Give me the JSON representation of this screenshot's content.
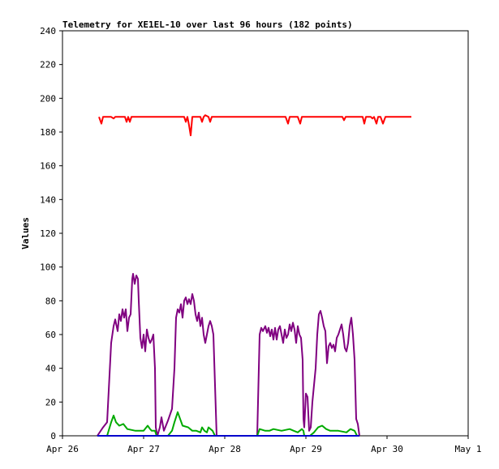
{
  "chart_data": {
    "type": "line",
    "title": "Telemetry for XE1EL-10 over last 96 hours (182 points)",
    "xlabel": "",
    "ylabel": "Values",
    "x_ticks": [
      "Apr 26",
      "Apr 27",
      "Apr 28",
      "Apr 29",
      "Apr 30",
      "May 1"
    ],
    "y_ticks": [
      "0",
      "20",
      "40",
      "60",
      "80",
      "100",
      "120",
      "140",
      "160",
      "180",
      "200",
      "220",
      "240"
    ],
    "x_range_days": [
      0,
      5
    ],
    "ylim": [
      0,
      240
    ],
    "grid": false,
    "legend": "none",
    "series": [
      {
        "color": "#ff0000",
        "points": [
          [
            0.45,
            189
          ],
          [
            0.48,
            185
          ],
          [
            0.5,
            189
          ],
          [
            0.6,
            189
          ],
          [
            0.63,
            188
          ],
          [
            0.65,
            189
          ],
          [
            0.77,
            189
          ],
          [
            0.79,
            186
          ],
          [
            0.81,
            189
          ],
          [
            0.83,
            186
          ],
          [
            0.85,
            189
          ],
          [
            1.0,
            189
          ],
          [
            1.2,
            189
          ],
          [
            1.5,
            189
          ],
          [
            1.52,
            186
          ],
          [
            1.54,
            189
          ],
          [
            1.56,
            184
          ],
          [
            1.58,
            178
          ],
          [
            1.6,
            189
          ],
          [
            1.7,
            189
          ],
          [
            1.72,
            186
          ],
          [
            1.74,
            189
          ],
          [
            1.76,
            190
          ],
          [
            1.8,
            189
          ],
          [
            1.82,
            186
          ],
          [
            1.84,
            189
          ],
          [
            2.0,
            189
          ],
          [
            2.3,
            189
          ],
          [
            2.75,
            189
          ],
          [
            2.78,
            185
          ],
          [
            2.8,
            189
          ],
          [
            2.9,
            189
          ],
          [
            2.93,
            185
          ],
          [
            2.95,
            189
          ],
          [
            3.2,
            189
          ],
          [
            3.45,
            189
          ],
          [
            3.47,
            187
          ],
          [
            3.49,
            189
          ],
          [
            3.7,
            189
          ],
          [
            3.72,
            185
          ],
          [
            3.74,
            189
          ],
          [
            3.8,
            189
          ],
          [
            3.82,
            188
          ],
          [
            3.84,
            189
          ],
          [
            3.87,
            185
          ],
          [
            3.89,
            189
          ],
          [
            3.92,
            189
          ],
          [
            3.95,
            185
          ],
          [
            3.98,
            189
          ],
          [
            4.3,
            189
          ]
        ]
      },
      {
        "color": "#800080",
        "points": [
          [
            0.43,
            0
          ],
          [
            0.5,
            5
          ],
          [
            0.55,
            8
          ],
          [
            0.6,
            55
          ],
          [
            0.63,
            65
          ],
          [
            0.65,
            69
          ],
          [
            0.68,
            62
          ],
          [
            0.7,
            72
          ],
          [
            0.72,
            68
          ],
          [
            0.74,
            75
          ],
          [
            0.76,
            70
          ],
          [
            0.78,
            75
          ],
          [
            0.8,
            62
          ],
          [
            0.82,
            70
          ],
          [
            0.84,
            72
          ],
          [
            0.86,
            93
          ],
          [
            0.87,
            96
          ],
          [
            0.89,
            90
          ],
          [
            0.91,
            95
          ],
          [
            0.93,
            93
          ],
          [
            0.94,
            80
          ],
          [
            0.96,
            58
          ],
          [
            0.98,
            52
          ],
          [
            1.0,
            60
          ],
          [
            1.02,
            50
          ],
          [
            1.04,
            63
          ],
          [
            1.06,
            58
          ],
          [
            1.08,
            55
          ],
          [
            1.1,
            57
          ],
          [
            1.12,
            60
          ],
          [
            1.14,
            40
          ],
          [
            1.15,
            5
          ],
          [
            1.17,
            0
          ],
          [
            1.2,
            5
          ],
          [
            1.22,
            11
          ],
          [
            1.25,
            3
          ],
          [
            1.3,
            9
          ],
          [
            1.35,
            16
          ],
          [
            1.38,
            40
          ],
          [
            1.4,
            70
          ],
          [
            1.42,
            75
          ],
          [
            1.44,
            73
          ],
          [
            1.46,
            78
          ],
          [
            1.48,
            70
          ],
          [
            1.5,
            80
          ],
          [
            1.52,
            82
          ],
          [
            1.54,
            78
          ],
          [
            1.56,
            81
          ],
          [
            1.58,
            78
          ],
          [
            1.6,
            84
          ],
          [
            1.62,
            80
          ],
          [
            1.64,
            72
          ],
          [
            1.66,
            68
          ],
          [
            1.68,
            73
          ],
          [
            1.7,
            65
          ],
          [
            1.72,
            70
          ],
          [
            1.74,
            60
          ],
          [
            1.76,
            55
          ],
          [
            1.78,
            60
          ],
          [
            1.8,
            65
          ],
          [
            1.82,
            68
          ],
          [
            1.84,
            65
          ],
          [
            1.86,
            60
          ],
          [
            1.88,
            30
          ],
          [
            1.9,
            0
          ],
          [
            2.0,
            0
          ],
          [
            2.2,
            0
          ],
          [
            2.4,
            0
          ],
          [
            2.43,
            60
          ],
          [
            2.45,
            64
          ],
          [
            2.47,
            62
          ],
          [
            2.5,
            65
          ],
          [
            2.52,
            61
          ],
          [
            2.54,
            64
          ],
          [
            2.56,
            59
          ],
          [
            2.58,
            63
          ],
          [
            2.6,
            57
          ],
          [
            2.62,
            64
          ],
          [
            2.64,
            57
          ],
          [
            2.66,
            63
          ],
          [
            2.68,
            65
          ],
          [
            2.7,
            60
          ],
          [
            2.72,
            55
          ],
          [
            2.74,
            63
          ],
          [
            2.76,
            58
          ],
          [
            2.78,
            60
          ],
          [
            2.8,
            66
          ],
          [
            2.82,
            62
          ],
          [
            2.84,
            67
          ],
          [
            2.86,
            63
          ],
          [
            2.88,
            55
          ],
          [
            2.9,
            65
          ],
          [
            2.92,
            60
          ],
          [
            2.94,
            58
          ],
          [
            2.96,
            45
          ],
          [
            2.97,
            10
          ],
          [
            2.98,
            5
          ],
          [
            3.0,
            25
          ],
          [
            3.02,
            23
          ],
          [
            3.04,
            3
          ],
          [
            3.06,
            5
          ],
          [
            3.08,
            20
          ],
          [
            3.1,
            30
          ],
          [
            3.12,
            40
          ],
          [
            3.14,
            60
          ],
          [
            3.16,
            72
          ],
          [
            3.18,
            74
          ],
          [
            3.2,
            70
          ],
          [
            3.22,
            65
          ],
          [
            3.24,
            62
          ],
          [
            3.26,
            43
          ],
          [
            3.28,
            53
          ],
          [
            3.3,
            55
          ],
          [
            3.32,
            52
          ],
          [
            3.34,
            54
          ],
          [
            3.36,
            50
          ],
          [
            3.38,
            58
          ],
          [
            3.4,
            60
          ],
          [
            3.42,
            63
          ],
          [
            3.44,
            66
          ],
          [
            3.46,
            60
          ],
          [
            3.48,
            52
          ],
          [
            3.5,
            50
          ],
          [
            3.52,
            55
          ],
          [
            3.54,
            65
          ],
          [
            3.56,
            70
          ],
          [
            3.58,
            60
          ],
          [
            3.6,
            45
          ],
          [
            3.62,
            10
          ],
          [
            3.64,
            7
          ],
          [
            3.66,
            0
          ]
        ]
      },
      {
        "color": "#00aa00",
        "points": [
          [
            0.43,
            0
          ],
          [
            0.55,
            0
          ],
          [
            0.6,
            8
          ],
          [
            0.63,
            12
          ],
          [
            0.66,
            8
          ],
          [
            0.7,
            6
          ],
          [
            0.75,
            7
          ],
          [
            0.8,
            4
          ],
          [
            0.9,
            3
          ],
          [
            1.0,
            3
          ],
          [
            1.05,
            6
          ],
          [
            1.08,
            4
          ],
          [
            1.1,
            3
          ],
          [
            1.14,
            3
          ],
          [
            1.16,
            0
          ],
          [
            1.3,
            0
          ],
          [
            1.35,
            3
          ],
          [
            1.38,
            8
          ],
          [
            1.42,
            14
          ],
          [
            1.45,
            10
          ],
          [
            1.48,
            6
          ],
          [
            1.55,
            5
          ],
          [
            1.6,
            3
          ],
          [
            1.65,
            3
          ],
          [
            1.7,
            2
          ],
          [
            1.72,
            5
          ],
          [
            1.75,
            3
          ],
          [
            1.78,
            2
          ],
          [
            1.8,
            5
          ],
          [
            1.85,
            3
          ],
          [
            1.88,
            0
          ],
          [
            2.4,
            0
          ],
          [
            2.43,
            4
          ],
          [
            2.5,
            3
          ],
          [
            2.55,
            3
          ],
          [
            2.6,
            4
          ],
          [
            2.7,
            3
          ],
          [
            2.8,
            4
          ],
          [
            2.85,
            3
          ],
          [
            2.9,
            2
          ],
          [
            2.95,
            4
          ],
          [
            2.97,
            3
          ],
          [
            2.98,
            0
          ],
          [
            3.05,
            0
          ],
          [
            3.1,
            2
          ],
          [
            3.15,
            5
          ],
          [
            3.2,
            6
          ],
          [
            3.25,
            4
          ],
          [
            3.3,
            3
          ],
          [
            3.4,
            3
          ],
          [
            3.5,
            2
          ],
          [
            3.55,
            4
          ],
          [
            3.6,
            3
          ],
          [
            3.63,
            0
          ],
          [
            3.66,
            0
          ]
        ]
      },
      {
        "color": "#0000cc",
        "points": [
          [
            0.43,
            0
          ],
          [
            1.0,
            0
          ],
          [
            2.0,
            0
          ],
          [
            3.0,
            0
          ],
          [
            3.66,
            0
          ]
        ]
      }
    ]
  }
}
